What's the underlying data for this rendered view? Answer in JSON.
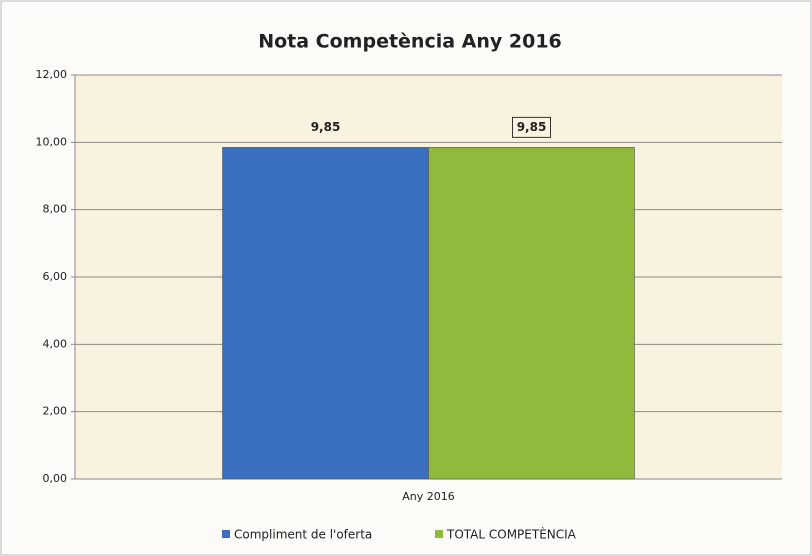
{
  "chart_data": {
    "type": "bar",
    "title": "Nota Competència Any 2016",
    "categories": [
      "Any 2016"
    ],
    "series": [
      {
        "name": "Compliment de l'oferta",
        "color": "#3a70bf",
        "values": [
          9.85
        ],
        "value_labels": [
          "9,85"
        ]
      },
      {
        "name": "TOTAL COMPETÈNCIA",
        "color": "#8fba3c",
        "values": [
          9.85
        ],
        "value_labels": [
          "9,85"
        ]
      }
    ],
    "ylim": [
      0,
      12
    ],
    "yticks": [
      {
        "value": 0,
        "label": "0,00"
      },
      {
        "value": 2,
        "label": "2,00"
      },
      {
        "value": 4,
        "label": "4,00"
      },
      {
        "value": 6,
        "label": "6,00"
      },
      {
        "value": 8,
        "label": "8,00"
      },
      {
        "value": 10,
        "label": "10,00"
      },
      {
        "value": 12,
        "label": "12,00"
      }
    ],
    "grid": true,
    "legend": "bottom"
  }
}
